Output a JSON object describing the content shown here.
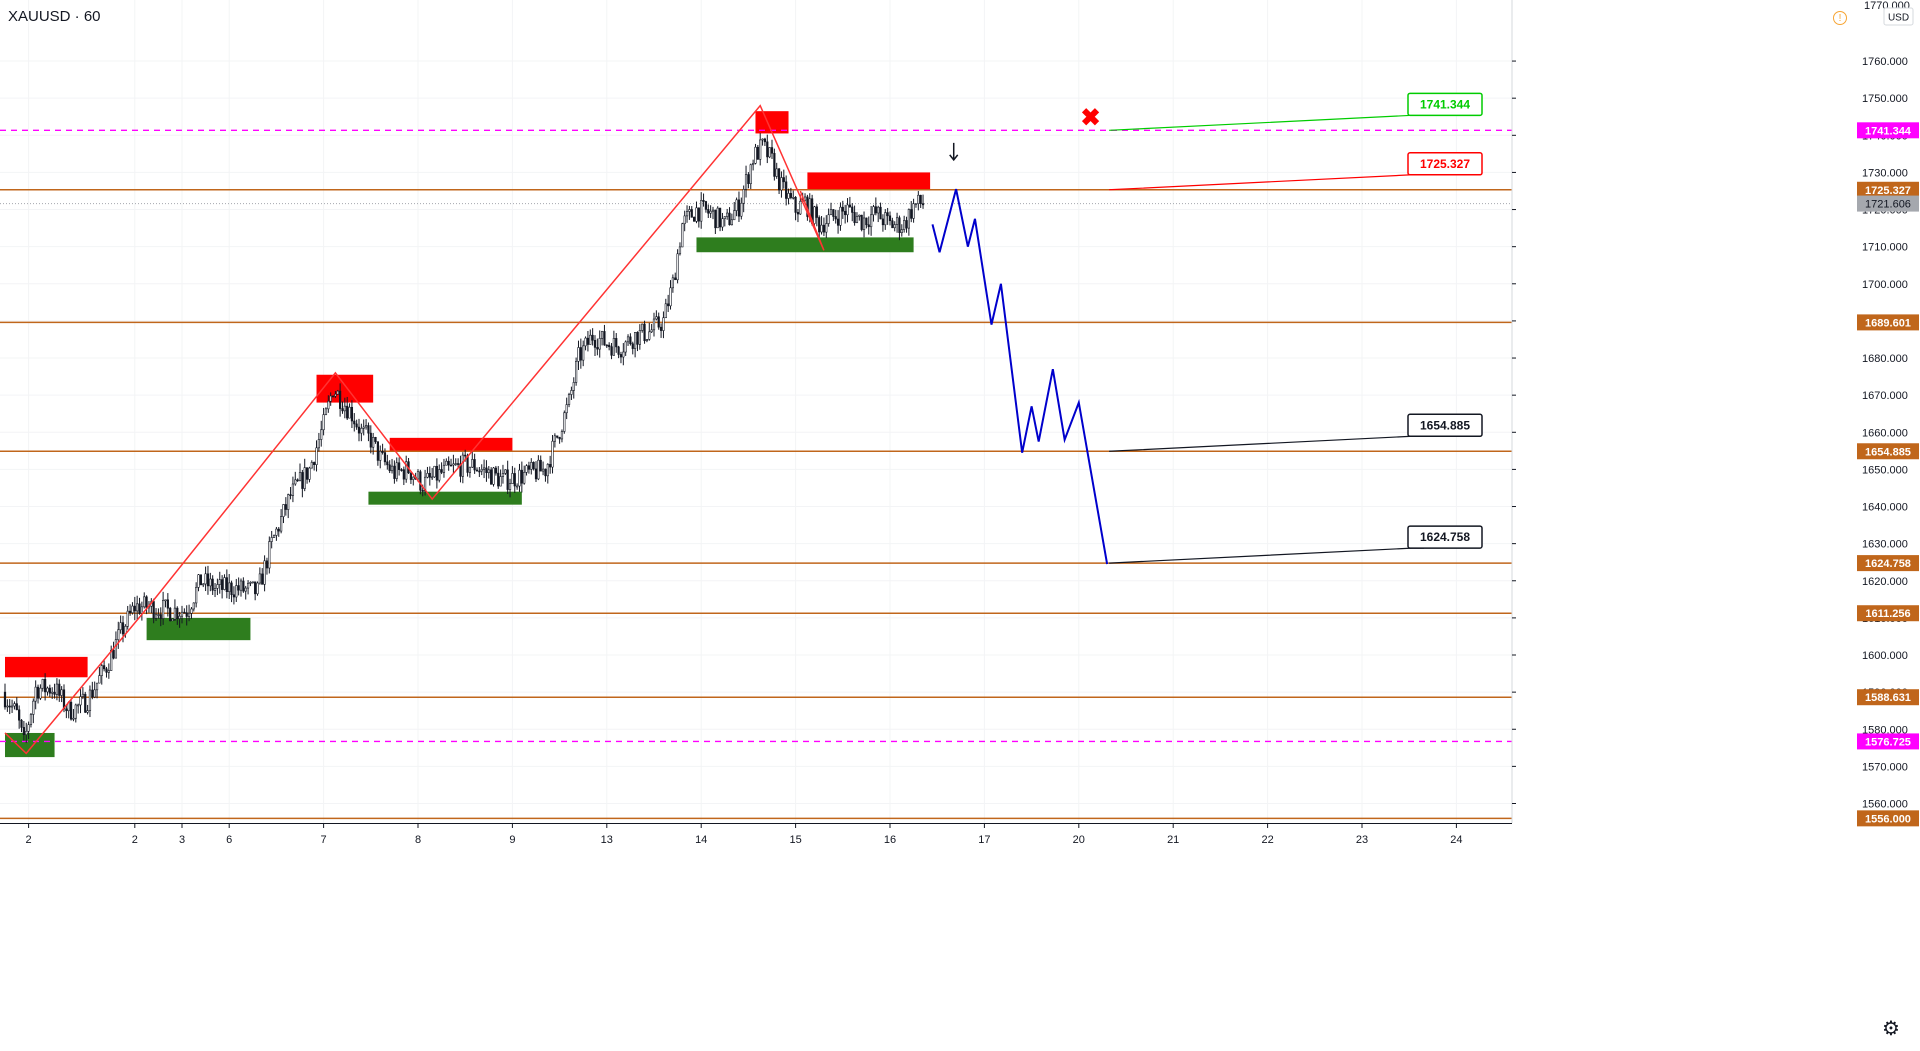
{
  "header": {
    "symbol": "XAUUSD · 60"
  },
  "currency": "USD",
  "top_clipped_tick": "1770.000",
  "colors": {
    "level": "#c0661b",
    "magenta": "#ff00ff",
    "supply": "#ff0000",
    "demand": "#2e7d1e",
    "zigzag": "#ff3333",
    "projection": "#0000cc",
    "current_price": "#a5a8ae",
    "candle": "#131722"
  },
  "chart_data": {
    "type": "candlestick",
    "y_range": [
      1553,
      1773
    ],
    "y_ticks": [
      1760,
      1750,
      1740,
      1730,
      1720,
      1710,
      1700,
      1690,
      1680,
      1670,
      1660,
      1650,
      1640,
      1630,
      1620,
      1610,
      1600,
      1590,
      1580,
      1570,
      1560
    ],
    "y_tick_labels": [
      "1760.000",
      "1750.000",
      "1740.000",
      "1730.000",
      "1720.000",
      "1710.000",
      "1700.000",
      "1690.000",
      "1680.000",
      "1670.000",
      "1660.000",
      "1650.000",
      "1640.000",
      "1630.000",
      "1620.000",
      "1610.000",
      "1600.000",
      "1590.000",
      "1580.000",
      "1570.000",
      "1560.000"
    ],
    "x_ticks": [
      {
        "label": "2",
        "bar": 10
      },
      {
        "label": "2",
        "bar": 55
      },
      {
        "label": "3",
        "bar": 75
      },
      {
        "label": "6",
        "bar": 95
      },
      {
        "label": "7",
        "bar": 135
      },
      {
        "label": "8",
        "bar": 175
      },
      {
        "label": "9",
        "bar": 215
      },
      {
        "label": "13",
        "bar": 255
      },
      {
        "label": "14",
        "bar": 295
      },
      {
        "label": "15",
        "bar": 335
      },
      {
        "label": "16",
        "bar": 375
      },
      {
        "label": "17",
        "bar": 415
      },
      {
        "label": "20",
        "bar": 455
      },
      {
        "label": "21",
        "bar": 495
      },
      {
        "label": "22",
        "bar": 535
      },
      {
        "label": "23",
        "bar": 575
      },
      {
        "label": "24",
        "bar": 615
      }
    ],
    "price_levels": [
      {
        "price": 1741.344,
        "label": "1741.344",
        "style": "dashed-magenta"
      },
      {
        "price": 1725.327,
        "label": "1725.327",
        "style": "solid"
      },
      {
        "price": 1689.601,
        "label": "1689.601",
        "style": "solid"
      },
      {
        "price": 1654.885,
        "label": "1654.885",
        "style": "solid"
      },
      {
        "price": 1624.758,
        "label": "1624.758",
        "style": "solid"
      },
      {
        "price": 1611.256,
        "label": "1611.256",
        "style": "solid"
      },
      {
        "price": 1588.631,
        "label": "1588.631",
        "style": "solid"
      },
      {
        "price": 1576.725,
        "label": "1576.725",
        "style": "dashed-magenta"
      },
      {
        "price": 1556.0,
        "label": "1556.000",
        "style": "solid"
      }
    ],
    "current_price": {
      "price": 1721.606,
      "label": "1721.606"
    },
    "zones": [
      {
        "kind": "supply",
        "b0": 0,
        "b1": 35,
        "top": 1599.5,
        "bottom": 1594
      },
      {
        "kind": "demand",
        "b0": 0,
        "b1": 21,
        "top": 1579,
        "bottom": 1572.5
      },
      {
        "kind": "demand",
        "b0": 60,
        "b1": 104,
        "top": 1610,
        "bottom": 1604
      },
      {
        "kind": "supply",
        "b0": 132,
        "b1": 156,
        "top": 1675.5,
        "bottom": 1668
      },
      {
        "kind": "supply",
        "b0": 163,
        "b1": 215,
        "top": 1658.5,
        "bottom": 1655
      },
      {
        "kind": "demand",
        "b0": 154,
        "b1": 219,
        "top": 1644,
        "bottom": 1640.5
      },
      {
        "kind": "supply",
        "b0": 318,
        "b1": 332,
        "top": 1746.5,
        "bottom": 1740.5
      },
      {
        "kind": "supply",
        "b0": 340,
        "b1": 392,
        "top": 1730,
        "bottom": 1725.5
      },
      {
        "kind": "demand",
        "b0": 293,
        "b1": 385,
        "top": 1712.5,
        "bottom": 1708.5
      }
    ],
    "zigzag": [
      {
        "bar": 0,
        "price": 1579
      },
      {
        "bar": 9,
        "price": 1573.5
      },
      {
        "bar": 62,
        "price": 1614
      },
      {
        "bar": 140,
        "price": 1676
      },
      {
        "bar": 181,
        "price": 1642
      },
      {
        "bar": 320,
        "price": 1748
      },
      {
        "bar": 347,
        "price": 1709
      },
      {
        "bar": 337,
        "price": 1725
      }
    ],
    "projection": [
      {
        "bar": 393,
        "price": 1716
      },
      {
        "bar": 396,
        "price": 1708.5
      },
      {
        "bar": 403,
        "price": 1725.5
      },
      {
        "bar": 408,
        "price": 1710
      },
      {
        "bar": 411,
        "price": 1717.5
      },
      {
        "bar": 418,
        "price": 1689
      },
      {
        "bar": 422,
        "price": 1700
      },
      {
        "bar": 431,
        "price": 1654.5
      },
      {
        "bar": 435,
        "price": 1667
      },
      {
        "bar": 438,
        "price": 1657.5
      },
      {
        "bar": 444,
        "price": 1677
      },
      {
        "bar": 449,
        "price": 1658
      },
      {
        "bar": 455,
        "price": 1668
      },
      {
        "bar": 467,
        "price": 1624.5
      }
    ],
    "callouts": [
      {
        "label": "1741.344",
        "price": 1741.344,
        "bar": 467,
        "color": "#00cc00"
      },
      {
        "label": "1725.327",
        "price": 1725.327,
        "bar": 467,
        "color": "#ff0000"
      },
      {
        "label": "1654.885",
        "price": 1654.885,
        "bar": 467,
        "color": "#131722"
      },
      {
        "label": "1624.758",
        "price": 1624.758,
        "bar": 467,
        "color": "#131722"
      }
    ],
    "markers": [
      {
        "kind": "cross",
        "bar": 460,
        "price": 1745
      },
      {
        "kind": "down-arrow",
        "bar": 402,
        "price": 1735
      }
    ],
    "bar_count": 390,
    "anchors": [
      [
        0,
        1590
      ],
      [
        6,
        1584
      ],
      [
        9,
        1576
      ],
      [
        14,
        1591
      ],
      [
        22,
        1591
      ],
      [
        28,
        1585
      ],
      [
        32,
        1586
      ],
      [
        36,
        1588
      ],
      [
        44,
        1597
      ],
      [
        50,
        1606
      ],
      [
        56,
        1613
      ],
      [
        62,
        1613
      ],
      [
        70,
        1612
      ],
      [
        78,
        1612
      ],
      [
        84,
        1620
      ],
      [
        90,
        1618
      ],
      [
        98,
        1618
      ],
      [
        108,
        1617
      ],
      [
        114,
        1630
      ],
      [
        122,
        1643
      ],
      [
        130,
        1650
      ],
      [
        136,
        1662
      ],
      [
        140,
        1672
      ],
      [
        148,
        1665
      ],
      [
        152,
        1660
      ],
      [
        156,
        1658
      ],
      [
        160,
        1653
      ],
      [
        166,
        1649
      ],
      [
        172,
        1650
      ],
      [
        178,
        1646
      ],
      [
        186,
        1649
      ],
      [
        194,
        1651
      ],
      [
        200,
        1651
      ],
      [
        206,
        1649
      ],
      [
        212,
        1647
      ],
      [
        218,
        1648
      ],
      [
        224,
        1649
      ],
      [
        230,
        1650
      ],
      [
        234,
        1657
      ],
      [
        240,
        1668
      ],
      [
        244,
        1680
      ],
      [
        250,
        1686
      ],
      [
        256,
        1684
      ],
      [
        262,
        1683
      ],
      [
        268,
        1686
      ],
      [
        274,
        1687
      ],
      [
        280,
        1690
      ],
      [
        284,
        1700
      ],
      [
        288,
        1716
      ],
      [
        294,
        1720
      ],
      [
        300,
        1719
      ],
      [
        306,
        1716
      ],
      [
        312,
        1721
      ],
      [
        318,
        1734
      ],
      [
        322,
        1737
      ],
      [
        326,
        1733
      ],
      [
        330,
        1726
      ],
      [
        336,
        1720
      ],
      [
        340,
        1722
      ],
      [
        346,
        1716
      ],
      [
        352,
        1718
      ],
      [
        358,
        1720
      ],
      [
        364,
        1717
      ],
      [
        370,
        1719
      ],
      [
        376,
        1716
      ],
      [
        382,
        1716
      ],
      [
        386,
        1721
      ],
      [
        389,
        1721.6
      ]
    ]
  }
}
